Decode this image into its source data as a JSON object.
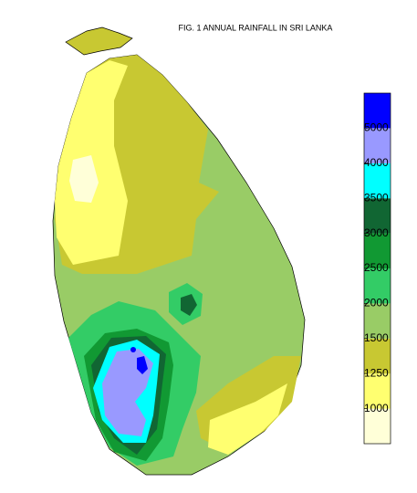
{
  "title": "FIG. 1 ANNUAL RAINFALL IN SRI LANKA",
  "legend": {
    "ticks": [
      1000,
      1250,
      1500,
      2000,
      2500,
      3000,
      3500,
      4000,
      5000
    ],
    "colors": [
      "#ffffd8",
      "#ffff70",
      "#c8c832",
      "#99cc66",
      "#33cc66",
      "#119933",
      "#116633",
      "#00ffff",
      "#9999ff",
      "#0000ff"
    ]
  }
}
